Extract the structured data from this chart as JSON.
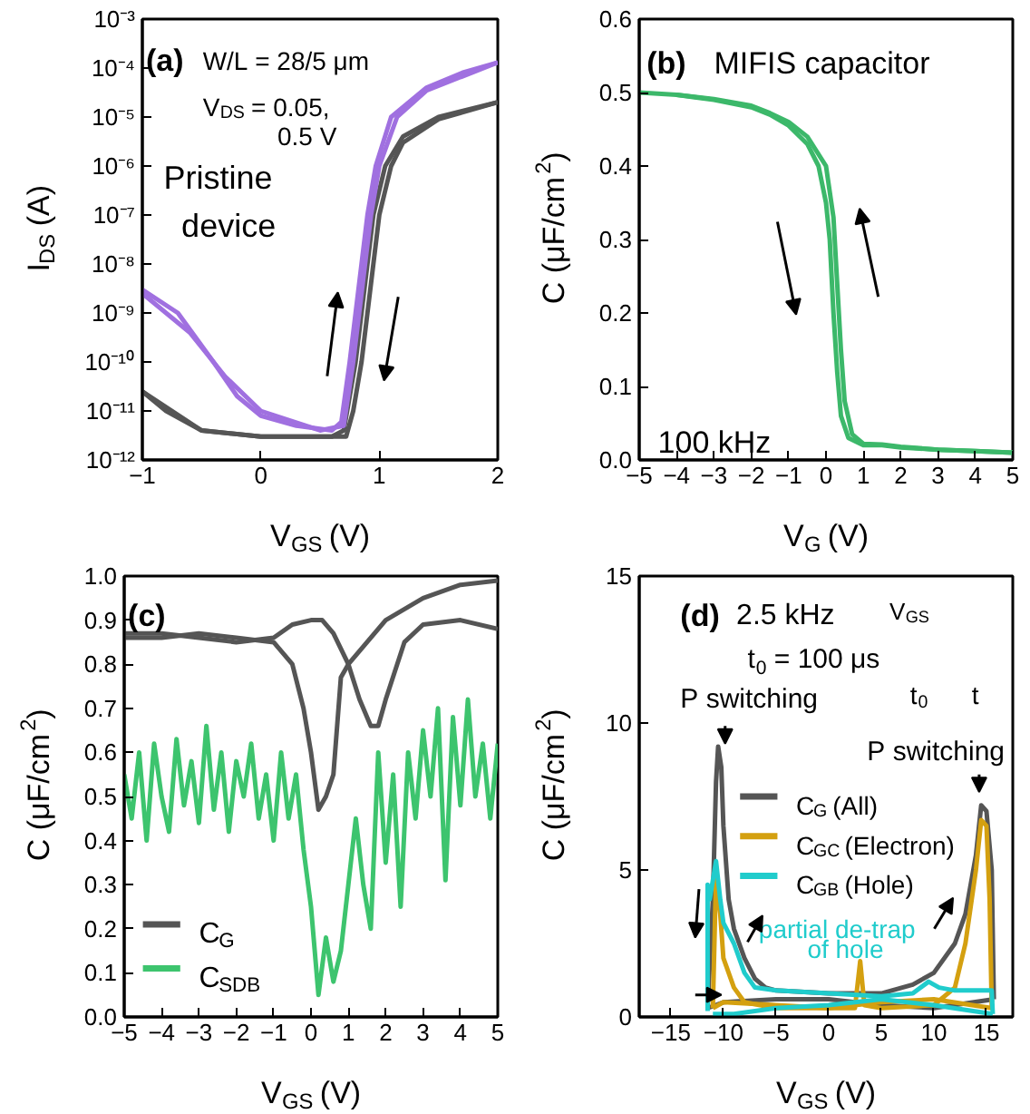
{
  "chart_data": [
    {
      "type": "line",
      "xlabel": "V$_{GS}$ (V)",
      "ylabel": "I$_{DS}$ (A)",
      "log": true,
      "xlim": [
        -1,
        2
      ],
      "ylim": [
        1e-12,
        0.001
      ],
      "xticks": [
        -1,
        0,
        1,
        2
      ],
      "yticks": [
        {
          "value": 1e-12,
          "label": "10⁻¹²"
        },
        {
          "value": 1e-11,
          "label": "10⁻¹¹"
        },
        {
          "value": 1e-10,
          "label": "10⁻¹⁰"
        },
        {
          "value": 1e-09,
          "label": "10⁻⁹"
        },
        {
          "value": 1e-08,
          "label": "10⁻⁸"
        },
        {
          "value": 1e-07,
          "label": "10⁻⁷"
        },
        {
          "value": 1e-06,
          "label": "10⁻⁶"
        },
        {
          "value": 1e-05,
          "label": "10⁻⁵"
        },
        {
          "value": 0.0001,
          "label": "10⁻⁴"
        },
        {
          "value": 0.001,
          "label": "10⁻³"
        }
      ],
      "annotations": [
        "(a)",
        "W/L = 28/5 μm",
        "V$_{DS}$ = 0.05,",
        "0.5 V",
        "Pristine",
        "device"
      ],
      "series": [
        {
          "color": "#555555",
          "x": [
            -1,
            -0.8,
            -0.5,
            0,
            0.6,
            0.7,
            0.75,
            0.8,
            0.85,
            0.9,
            0.95,
            1.05,
            1.2,
            1.5,
            2
          ],
          "values": [
            2.5e-11,
            1e-11,
            4e-12,
            3e-12,
            3e-12,
            4e-12,
            2e-11,
            1e-10,
            1e-09,
            1e-08,
            1e-07,
            1e-06,
            4e-06,
            1e-05,
            2e-05
          ]
        },
        {
          "color": "#555555",
          "x": [
            2,
            1.5,
            1.2,
            1.1,
            1.0,
            0.95,
            0.9,
            0.85,
            0.78,
            0.72,
            0,
            -0.5,
            -1
          ],
          "values": [
            2e-05,
            9e-06,
            3e-06,
            1e-06,
            1e-07,
            1e-08,
            1e-09,
            1e-10,
            1e-11,
            3e-12,
            3e-12,
            4e-12,
            2.5e-11
          ]
        },
        {
          "color": "#a070e0",
          "x": [
            -1,
            -0.7,
            -0.4,
            -0.2,
            0,
            0.3,
            0.6,
            0.68,
            0.75,
            0.8,
            0.85,
            0.9,
            0.97,
            1.1,
            1.4,
            1.7,
            2
          ],
          "values": [
            3e-09,
            1e-09,
            1e-10,
            2e-11,
            8e-12,
            5e-12,
            4e-12,
            6e-12,
            1e-10,
            1e-09,
            1e-08,
            1e-07,
            1e-06,
            1e-05,
            4e-05,
            8e-05,
            0.00013
          ]
        },
        {
          "color": "#a070e0",
          "x": [
            2,
            1.4,
            1.15,
            1.0,
            0.93,
            0.88,
            0.83,
            0.78,
            0.7,
            0.5,
            0,
            -0.3,
            -0.6,
            -1
          ],
          "values": [
            0.00013,
            3.5e-05,
            1e-05,
            1e-06,
            1e-07,
            1e-08,
            1e-09,
            1e-10,
            5e-12,
            4e-12,
            1e-11,
            5e-11,
            4e-10,
            2.5e-09
          ]
        }
      ]
    },
    {
      "type": "line",
      "xlabel": "V$_{G}$ (V)",
      "ylabel": "C (μF/cm$^{2}$)",
      "xlim": [
        -5,
        5
      ],
      "ylim": [
        0,
        0.6
      ],
      "xticks": [
        -5,
        -4,
        -3,
        -2,
        -1,
        0,
        1,
        2,
        3,
        4,
        5
      ],
      "yticks": [
        {
          "value": 0,
          "label": "0.0"
        },
        0.1,
        0.2,
        0.3,
        0.4,
        0.5,
        0.6
      ],
      "annotations": [
        "(b)",
        "MIFIS capacitor",
        "100 kHz"
      ],
      "series": [
        {
          "color": "#3cb86a",
          "x": [
            -5,
            -4,
            -3,
            -2,
            -1.5,
            -1,
            -0.5,
            -0.2,
            0,
            0.1,
            0.2,
            0.3,
            0.4,
            0.6,
            1,
            1.5,
            2,
            3,
            4,
            5
          ],
          "values": [
            0.5,
            0.497,
            0.49,
            0.48,
            0.47,
            0.455,
            0.43,
            0.4,
            0.35,
            0.3,
            0.2,
            0.12,
            0.06,
            0.03,
            0.02,
            0.02,
            0.017,
            0.014,
            0.012,
            0.01
          ]
        },
        {
          "color": "#3cb86a",
          "x": [
            5,
            4,
            3,
            2,
            1.5,
            1,
            0.7,
            0.5,
            0.4,
            0.3,
            0.2,
            0,
            -0.5,
            -1,
            -1.5,
            -2,
            -3,
            -4
          ],
          "values": [
            0.01,
            0.012,
            0.014,
            0.018,
            0.021,
            0.022,
            0.035,
            0.08,
            0.15,
            0.24,
            0.33,
            0.4,
            0.44,
            0.46,
            0.472,
            0.482,
            0.491,
            0.497
          ]
        }
      ]
    },
    {
      "type": "line",
      "xlabel": "V$_{GS}$ (V)",
      "ylabel": "C (μF/cm$^{2}$)",
      "legend": "bottom left",
      "xlim": [
        -5,
        5
      ],
      "ylim": [
        0,
        1.0
      ],
      "xticks": [
        -5,
        -4,
        -3,
        -2,
        -1,
        0,
        1,
        2,
        3,
        4,
        5
      ],
      "yticks": [
        {
          "value": 0,
          "label": "0.0"
        },
        0.1,
        0.2,
        0.3,
        0.4,
        0.5,
        0.6,
        0.7,
        0.8,
        0.9,
        {
          "value": 1.0,
          "label": "1.0"
        }
      ],
      "annotations": [
        "(c)"
      ],
      "series": [
        {
          "name": "C$_{G}$",
          "color": "#555555",
          "x": [
            -5,
            -4,
            -3,
            -2,
            -1,
            -0.5,
            0,
            0.3,
            0.6,
            1,
            1.3,
            1.6,
            1.8,
            2,
            2.5,
            3,
            4,
            5
          ],
          "values": [
            0.87,
            0.87,
            0.86,
            0.85,
            0.86,
            0.89,
            0.9,
            0.9,
            0.87,
            0.8,
            0.72,
            0.66,
            0.66,
            0.72,
            0.85,
            0.89,
            0.9,
            0.88
          ]
        },
        {
          "color": "#555555",
          "x": [
            5,
            4,
            3,
            2,
            1,
            0.8,
            0.6,
            0.4,
            0.2,
            0,
            -0.2,
            -0.5,
            -1,
            -2,
            -3,
            -4,
            -5
          ],
          "values": [
            0.99,
            0.98,
            0.95,
            0.9,
            0.8,
            0.77,
            0.55,
            0.5,
            0.47,
            0.6,
            0.7,
            0.8,
            0.85,
            0.86,
            0.87,
            0.86,
            0.86
          ]
        },
        {
          "name": "C$_{SDB}$",
          "color": "#3dc46e",
          "x": [
            -5,
            -4.8,
            -4.6,
            -4.4,
            -4.2,
            -4,
            -3.8,
            -3.6,
            -3.4,
            -3.2,
            -3,
            -2.8,
            -2.6,
            -2.4,
            -2.2,
            -2,
            -1.8,
            -1.6,
            -1.4,
            -1.2,
            -1,
            -0.8,
            -0.6,
            -0.4,
            -0.2,
            0,
            0.2,
            0.4,
            0.6,
            0.8,
            1,
            1.2,
            1.4,
            1.6,
            1.8,
            2,
            2.2,
            2.4,
            2.6,
            2.8,
            3,
            3.2,
            3.4,
            3.6,
            3.8,
            4,
            4.2,
            4.4,
            4.6,
            4.8,
            5
          ],
          "values": [
            0.55,
            0.45,
            0.6,
            0.4,
            0.62,
            0.5,
            0.42,
            0.63,
            0.48,
            0.58,
            0.44,
            0.66,
            0.47,
            0.6,
            0.42,
            0.58,
            0.5,
            0.62,
            0.45,
            0.55,
            0.4,
            0.6,
            0.45,
            0.55,
            0.38,
            0.25,
            0.05,
            0.18,
            0.08,
            0.15,
            0.3,
            0.45,
            0.3,
            0.2,
            0.6,
            0.35,
            0.55,
            0.25,
            0.6,
            0.45,
            0.65,
            0.5,
            0.7,
            0.31,
            0.68,
            0.48,
            0.72,
            0.5,
            0.62,
            0.45,
            0.62
          ]
        }
      ]
    },
    {
      "type": "line",
      "xlabel": "V$_{GS}$ (V)",
      "ylabel": "C (μF/cm$^{2}$)",
      "legend": "right",
      "xlim": [
        -18,
        17.5
      ],
      "ylim": [
        0,
        15
      ],
      "xticks": [
        -15,
        -10,
        -5,
        0,
        5,
        10,
        15
      ],
      "yticks": [
        0,
        5,
        10,
        15
      ],
      "annotations": [
        "(d)",
        "2.5 kHz",
        "t$_{0}$ = 100 μs",
        "P switching",
        "P switching",
        "partial de-trap",
        "of hole",
        "V$_{GS}$",
        "t",
        "t$_{0}$"
      ],
      "series": [
        {
          "name": "C$_{G}$ (All)",
          "color": "#555555",
          "x": [
            -11.5,
            -11,
            -10.7,
            -10.5,
            -10.2,
            -10,
            -9.5,
            -9,
            -8,
            -7,
            -6,
            -5,
            0,
            5,
            8,
            10,
            12,
            13,
            14,
            14.5,
            15,
            15.5,
            15.7
          ],
          "values": [
            0.3,
            4,
            8,
            9.2,
            8.5,
            6.5,
            4,
            3,
            2,
            1.3,
            1,
            0.9,
            0.8,
            0.8,
            1.1,
            1.5,
            2.5,
            3.5,
            5.5,
            7.2,
            7,
            5,
            0.6
          ]
        },
        {
          "color": "#555555",
          "x": [
            15.7,
            10,
            5,
            0,
            -5,
            -10,
            -11.5
          ],
          "values": [
            0.6,
            0.3,
            0.4,
            0.6,
            0.6,
            0.5,
            0.3
          ]
        },
        {
          "name": "C$_{GC}$ (Electron)",
          "color": "#d4a010",
          "x": [
            -11,
            -10.7,
            -10.3,
            -10,
            -9,
            -8,
            -5,
            2.5,
            3,
            3.4,
            5,
            10,
            12,
            13,
            14,
            14.5,
            15,
            15.3,
            15.5
          ],
          "values": [
            0.3,
            4.8,
            3.5,
            2,
            1,
            0.5,
            0.3,
            0.3,
            1.9,
            0.4,
            0.3,
            0.4,
            1,
            2.5,
            5,
            6.7,
            6.5,
            4,
            0.3
          ]
        },
        {
          "color": "#d4a010",
          "x": [
            15.5,
            10,
            5,
            0,
            -5,
            -10,
            -11
          ],
          "values": [
            0.3,
            0.6,
            0.5,
            0.3,
            0.4,
            0.5,
            0.3
          ]
        },
        {
          "name": "C$_{GB}$ (Hole)",
          "color": "#20cccc",
          "x": [
            -11.5,
            -11.5,
            -11.3,
            -10.7,
            -10.3,
            -10,
            -9,
            -8,
            -7,
            -5,
            0,
            5,
            8,
            9.5,
            10.5,
            12,
            15.5,
            15.6
          ],
          "values": [
            0.2,
            4.5,
            4,
            5.3,
            4,
            3.2,
            2.5,
            1.5,
            1,
            0.9,
            0.8,
            0.7,
            0.8,
            1.2,
            1,
            0.9,
            0.9,
            0.1
          ]
        },
        {
          "color": "#20cccc",
          "x": [
            15.6,
            10,
            5,
            0,
            -5,
            -9,
            -11
          ],
          "values": [
            0.1,
            0.4,
            0.6,
            0.4,
            0.3,
            0.1,
            0.1
          ]
        }
      ]
    }
  ]
}
